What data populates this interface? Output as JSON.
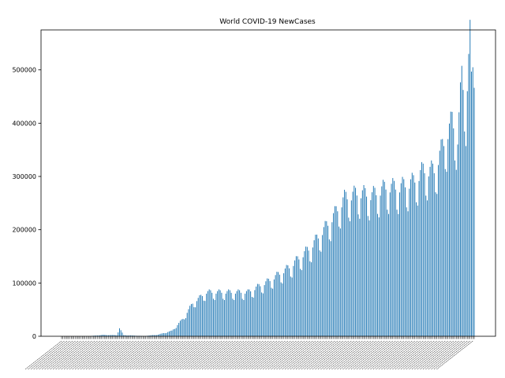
{
  "chart_data": {
    "type": "bar",
    "title": "World COVID-19 NewCases",
    "xlabel": "",
    "ylabel": "",
    "ylim": [
      0,
      575000
    ],
    "yticks": [
      0,
      100000,
      200000,
      300000,
      400000,
      500000
    ],
    "ytick_labels": [
      "0",
      "100000",
      "200000",
      "300000",
      "400000",
      "500000"
    ],
    "grid": false,
    "bar_color": "#1f77b4",
    "series_count": 1,
    "estimated_bar_count": 300,
    "anchors": [
      {
        "index": 0,
        "value": 0
      },
      {
        "index": 20,
        "value": 300
      },
      {
        "index": 30,
        "value": 2500
      },
      {
        "index": 40,
        "value": 2000
      },
      {
        "index": 42,
        "value": 15000
      },
      {
        "index": 45,
        "value": 2000
      },
      {
        "index": 60,
        "value": 500
      },
      {
        "index": 70,
        "value": 3000
      },
      {
        "index": 80,
        "value": 10000
      },
      {
        "index": 88,
        "value": 32000
      },
      {
        "index": 95,
        "value": 60000
      },
      {
        "index": 105,
        "value": 80000
      },
      {
        "index": 120,
        "value": 80000
      },
      {
        "index": 135,
        "value": 80000
      },
      {
        "index": 150,
        "value": 100000
      },
      {
        "index": 165,
        "value": 125000
      },
      {
        "index": 180,
        "value": 160000
      },
      {
        "index": 195,
        "value": 210000
      },
      {
        "index": 205,
        "value": 250000
      },
      {
        "index": 215,
        "value": 260000
      },
      {
        "index": 225,
        "value": 255000
      },
      {
        "index": 235,
        "value": 270000
      },
      {
        "index": 245,
        "value": 270000
      },
      {
        "index": 255,
        "value": 280000
      },
      {
        "index": 262,
        "value": 300000
      },
      {
        "index": 270,
        "value": 300000
      },
      {
        "index": 277,
        "value": 350000
      },
      {
        "index": 283,
        "value": 390000
      },
      {
        "index": 287,
        "value": 360000
      },
      {
        "index": 290,
        "value": 470000
      },
      {
        "index": 293,
        "value": 420000
      },
      {
        "index": 296,
        "value": 540000
      },
      {
        "index": 297,
        "value": 460000
      },
      {
        "index": 299,
        "value": 530000
      }
    ]
  }
}
